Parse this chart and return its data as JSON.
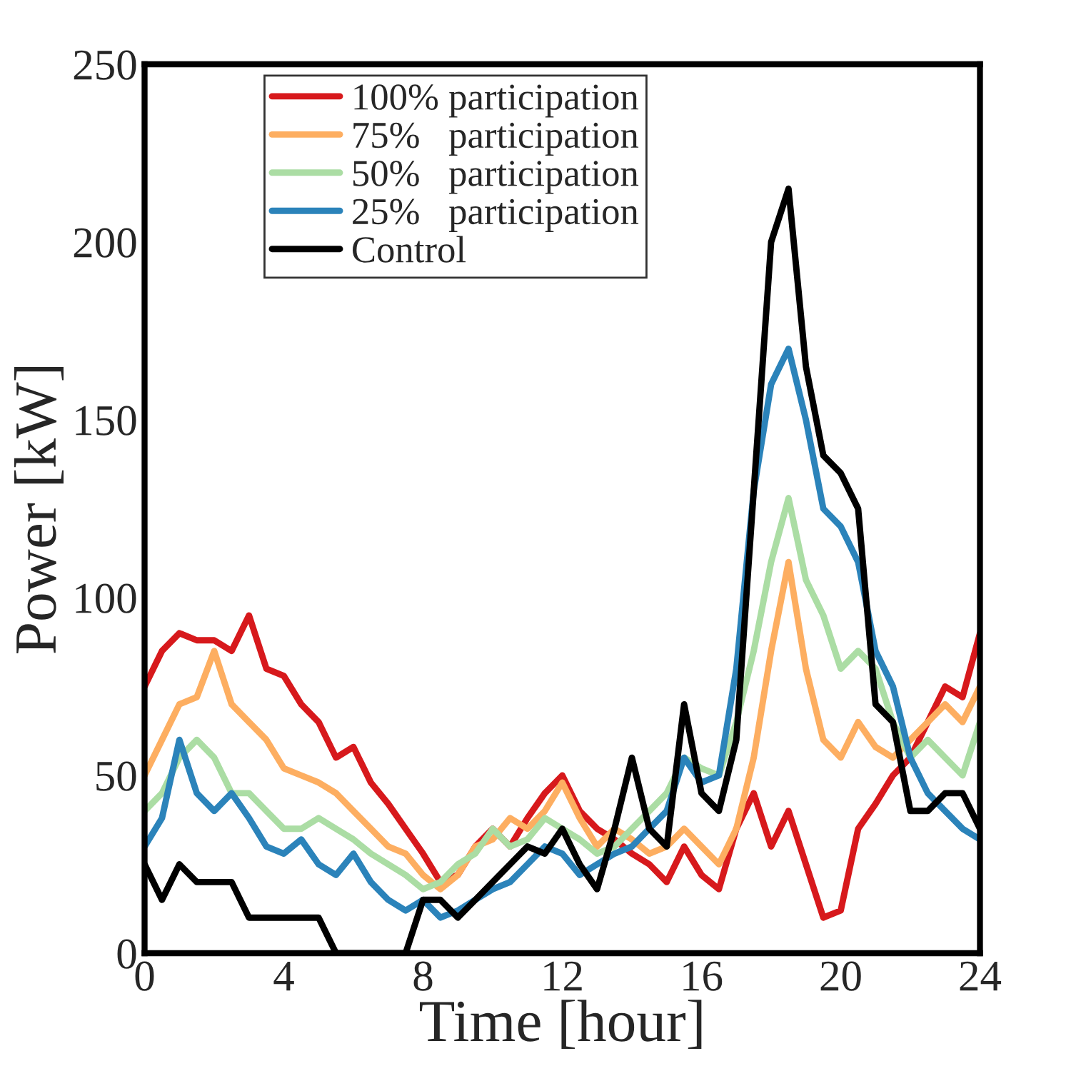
{
  "chart_data": {
    "type": "line",
    "xlabel": "Time [hour]",
    "ylabel": "Power [kW]",
    "x": [
      0,
      0.5,
      1,
      1.5,
      2,
      2.5,
      3,
      3.5,
      4,
      4.5,
      5,
      5.5,
      6,
      6.5,
      7,
      7.5,
      8,
      8.5,
      9,
      9.5,
      10,
      10.5,
      11,
      11.5,
      12,
      12.5,
      13,
      13.5,
      14,
      14.5,
      15,
      15.5,
      16,
      16.5,
      17,
      17.5,
      18,
      18.5,
      19,
      19.5,
      20,
      20.5,
      21,
      21.5,
      22,
      22.5,
      23,
      23.5,
      24
    ],
    "series": [
      {
        "name": "100% participation",
        "color": "#d7191c",
        "values": [
          75,
          85,
          90,
          88,
          88,
          85,
          95,
          80,
          78,
          70,
          65,
          55,
          58,
          48,
          42,
          35,
          28,
          20,
          22,
          30,
          35,
          30,
          38,
          45,
          50,
          40,
          35,
          32,
          28,
          25,
          20,
          30,
          22,
          18,
          35,
          45,
          30,
          40,
          25,
          10,
          12,
          35,
          42,
          50,
          55,
          65,
          75,
          72,
          90
        ]
      },
      {
        "name": "75%   participation",
        "color": "#fdae61",
        "values": [
          50,
          60,
          70,
          72,
          85,
          70,
          65,
          60,
          52,
          50,
          48,
          45,
          40,
          35,
          30,
          28,
          22,
          18,
          22,
          30,
          32,
          38,
          35,
          40,
          48,
          38,
          30,
          35,
          32,
          28,
          30,
          35,
          30,
          25,
          35,
          55,
          85,
          110,
          80,
          60,
          55,
          65,
          58,
          55,
          60,
          65,
          70,
          65,
          75
        ]
      },
      {
        "name": "50%   participation",
        "color": "#abdda4",
        "values": [
          40,
          45,
          55,
          60,
          55,
          45,
          45,
          40,
          35,
          35,
          38,
          35,
          32,
          28,
          25,
          22,
          18,
          20,
          25,
          28,
          35,
          30,
          32,
          38,
          35,
          32,
          28,
          30,
          35,
          40,
          45,
          55,
          52,
          50,
          65,
          85,
          110,
          128,
          105,
          95,
          80,
          85,
          80,
          65,
          55,
          60,
          55,
          50,
          65
        ]
      },
      {
        "name": "25%   participation",
        "color": "#2b83ba",
        "values": [
          30,
          38,
          60,
          45,
          40,
          45,
          38,
          30,
          28,
          32,
          25,
          22,
          28,
          20,
          15,
          12,
          15,
          10,
          12,
          15,
          18,
          20,
          25,
          30,
          28,
          22,
          25,
          28,
          30,
          35,
          40,
          55,
          48,
          50,
          80,
          130,
          160,
          170,
          150,
          125,
          120,
          110,
          85,
          75,
          55,
          45,
          40,
          35,
          32
        ]
      },
      {
        "name": "Control",
        "color": "#000000",
        "values": [
          25,
          15,
          25,
          20,
          20,
          20,
          10,
          10,
          10,
          10,
          10,
          0,
          0,
          0,
          0,
          0,
          15,
          15,
          10,
          15,
          20,
          25,
          30,
          28,
          35,
          25,
          18,
          35,
          55,
          35,
          30,
          70,
          45,
          40,
          60,
          130,
          200,
          215,
          165,
          140,
          135,
          125,
          70,
          65,
          40,
          40,
          45,
          45,
          35
        ]
      }
    ],
    "xlim": [
      0,
      24
    ],
    "xticks": [
      0,
      4,
      8,
      12,
      16,
      20,
      24
    ],
    "ylim": [
      0,
      250
    ],
    "yticks": [
      0,
      50,
      100,
      150,
      200,
      250
    ],
    "legend": "top left",
    "grid": false
  }
}
